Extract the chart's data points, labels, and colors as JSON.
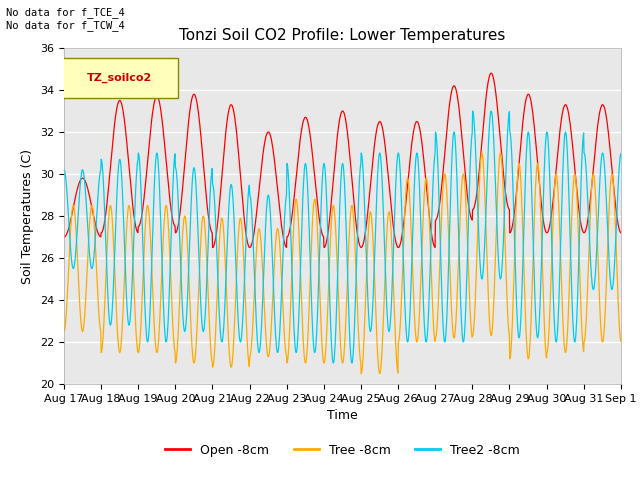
{
  "title": "Tonzi Soil CO2 Profile: Lower Temperatures",
  "xlabel": "Time",
  "ylabel": "Soil Temperatures (C)",
  "top_left_text": "No data for f_TCE_4\nNo data for f_TCW_4",
  "legend_box_label": "TZ_soilco2",
  "ylim": [
    20,
    36
  ],
  "yticks": [
    20,
    22,
    24,
    26,
    28,
    30,
    32,
    34,
    36
  ],
  "line_colors": {
    "open": "#ff0000",
    "tree": "#ffaa00",
    "tree2": "#00ccee"
  },
  "legend_labels": [
    "Open -8cm",
    "Tree -8cm",
    "Tree2 -8cm"
  ],
  "background_color": "#e8e8e8",
  "fig_background": "#ffffff",
  "n_days": 15,
  "open_max_variation": [
    29.8,
    33.5,
    33.7,
    33.8,
    33.3,
    32.0,
    32.7,
    33.0,
    32.5,
    32.5,
    34.2,
    34.8,
    33.8,
    33.3,
    33.3
  ],
  "open_min_variation": [
    27.0,
    27.2,
    27.5,
    27.2,
    26.5,
    26.5,
    27.0,
    26.5,
    26.5,
    26.5,
    27.8,
    28.3,
    27.2,
    27.2,
    27.2
  ],
  "tree_max_variation": [
    28.5,
    28.5,
    28.5,
    28.0,
    27.9,
    27.4,
    28.8,
    28.5,
    28.2,
    29.8,
    30.0,
    31.0,
    30.5,
    30.0,
    30.0
  ],
  "tree_min_variation": [
    22.5,
    21.5,
    21.5,
    21.0,
    20.8,
    21.3,
    21.0,
    21.0,
    20.5,
    22.0,
    22.2,
    22.3,
    21.2,
    21.5,
    22.0
  ],
  "tree2_max_variation": [
    30.2,
    30.7,
    31.0,
    30.3,
    29.5,
    29.0,
    30.5,
    30.5,
    31.0,
    31.0,
    32.0,
    33.0,
    32.0,
    32.0,
    31.0
  ],
  "tree2_min_variation": [
    25.5,
    22.8,
    22.0,
    22.5,
    22.0,
    21.5,
    21.5,
    21.0,
    22.5,
    22.0,
    22.0,
    25.0,
    22.2,
    22.0,
    24.5
  ],
  "xticklabels": [
    "Aug 17",
    "Aug 18",
    "Aug 19",
    "Aug 20",
    "Aug 21",
    "Aug 22",
    "Aug 23",
    "Aug 24",
    "Aug 25",
    "Aug 26",
    "Aug 27",
    "Aug 28",
    "Aug 29",
    "Aug 30",
    "Aug 31",
    "Sep 1"
  ],
  "samples_per_day": 96,
  "open_cycles_per_day": 1,
  "tree_cycles_per_day": 2,
  "tree2_cycles_per_day": 2
}
